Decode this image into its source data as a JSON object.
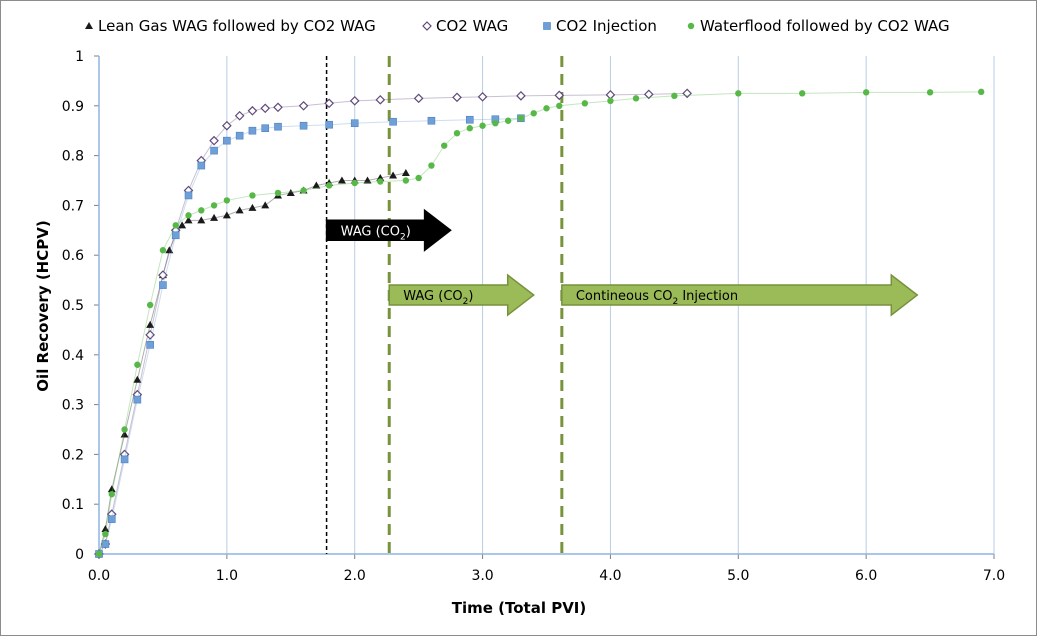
{
  "chart_data": {
    "type": "scatter",
    "xlabel": "Time (Total PVI)",
    "ylabel": "Oil Recovery (HCPV)",
    "xlim": [
      0,
      7
    ],
    "ylim": [
      0,
      1
    ],
    "x_ticks": [
      "0.0",
      "1.0",
      "2.0",
      "3.0",
      "4.0",
      "5.0",
      "6.0",
      "7.0"
    ],
    "y_ticks": [
      "0",
      "0.1",
      "0.2",
      "0.3",
      "0.4",
      "0.5",
      "0.6",
      "0.7",
      "0.8",
      "0.9",
      "1"
    ],
    "grid": "vertical",
    "legend_position": "top",
    "series": [
      {
        "name": "Lean Gas WAG followed by CO2 WAG",
        "marker": "triangle",
        "color": "#1a1a1a",
        "x": [
          0.0,
          0.05,
          0.1,
          0.2,
          0.3,
          0.4,
          0.5,
          0.55,
          0.6,
          0.65,
          0.7,
          0.8,
          0.9,
          1.0,
          1.1,
          1.2,
          1.3,
          1.4,
          1.5,
          1.6,
          1.7,
          1.8,
          1.9,
          2.0,
          2.1,
          2.2,
          2.3,
          2.4
        ],
        "y": [
          0.0,
          0.05,
          0.13,
          0.24,
          0.35,
          0.46,
          0.56,
          0.61,
          0.64,
          0.66,
          0.67,
          0.67,
          0.675,
          0.68,
          0.69,
          0.695,
          0.7,
          0.72,
          0.725,
          0.73,
          0.74,
          0.745,
          0.75,
          0.75,
          0.75,
          0.755,
          0.76,
          0.765
        ]
      },
      {
        "name": "CO2 WAG",
        "marker": "diamond",
        "color": "#604a7b",
        "x": [
          0.0,
          0.05,
          0.1,
          0.2,
          0.3,
          0.4,
          0.5,
          0.6,
          0.7,
          0.8,
          0.9,
          1.0,
          1.1,
          1.2,
          1.3,
          1.4,
          1.6,
          1.8,
          2.0,
          2.2,
          2.5,
          2.8,
          3.0,
          3.3,
          3.6,
          4.0,
          4.3,
          4.6
        ],
        "y": [
          0.0,
          0.02,
          0.08,
          0.2,
          0.32,
          0.44,
          0.56,
          0.65,
          0.73,
          0.79,
          0.83,
          0.86,
          0.88,
          0.89,
          0.895,
          0.897,
          0.9,
          0.905,
          0.91,
          0.912,
          0.915,
          0.917,
          0.918,
          0.92,
          0.921,
          0.922,
          0.923,
          0.925
        ]
      },
      {
        "name": "CO2 Injection",
        "marker": "square",
        "color": "#6f9fd8",
        "x": [
          0.0,
          0.05,
          0.1,
          0.2,
          0.3,
          0.4,
          0.5,
          0.6,
          0.7,
          0.8,
          0.9,
          1.0,
          1.1,
          1.2,
          1.3,
          1.4,
          1.6,
          1.8,
          2.0,
          2.3,
          2.6,
          2.9,
          3.1,
          3.3
        ],
        "y": [
          0.0,
          0.02,
          0.07,
          0.19,
          0.31,
          0.42,
          0.54,
          0.64,
          0.72,
          0.78,
          0.81,
          0.83,
          0.84,
          0.85,
          0.855,
          0.858,
          0.86,
          0.862,
          0.865,
          0.868,
          0.87,
          0.872,
          0.873,
          0.875
        ]
      },
      {
        "name": "Waterflood followed by CO2 WAG",
        "marker": "circle",
        "color": "#57b847",
        "x": [
          0.0,
          0.05,
          0.1,
          0.2,
          0.3,
          0.4,
          0.5,
          0.6,
          0.7,
          0.8,
          0.9,
          1.0,
          1.2,
          1.4,
          1.6,
          1.8,
          2.0,
          2.2,
          2.4,
          2.5,
          2.6,
          2.7,
          2.8,
          2.9,
          3.0,
          3.1,
          3.2,
          3.3,
          3.4,
          3.5,
          3.6,
          3.8,
          4.0,
          4.2,
          4.5,
          5.0,
          5.5,
          6.0,
          6.5,
          6.9
        ],
        "y": [
          0.0,
          0.04,
          0.12,
          0.25,
          0.38,
          0.5,
          0.61,
          0.66,
          0.68,
          0.69,
          0.7,
          0.71,
          0.72,
          0.725,
          0.73,
          0.74,
          0.745,
          0.748,
          0.75,
          0.755,
          0.78,
          0.82,
          0.845,
          0.855,
          0.86,
          0.865,
          0.87,
          0.875,
          0.885,
          0.895,
          0.9,
          0.905,
          0.91,
          0.915,
          0.92,
          0.925,
          0.925,
          0.927,
          0.927,
          0.928
        ]
      }
    ],
    "vertical_lines": [
      {
        "x": 1.78,
        "style": "dotted",
        "color": "#000000"
      },
      {
        "x": 2.27,
        "style": "dashed",
        "color": "#77933c"
      },
      {
        "x": 3.62,
        "style": "dashed",
        "color": "#77933c"
      }
    ],
    "annotations": [
      {
        "text": "WAG (CO",
        "sub": "2",
        "after": ")",
        "fill": "#000000",
        "text_color": "#ffffff",
        "x_start": 1.78,
        "x_end": 2.75,
        "y": 0.65
      },
      {
        "text": "WAG (CO",
        "sub": "2",
        "after": ")",
        "fill": "#9bbb59",
        "text_color": "#000000",
        "x_start": 2.27,
        "x_end": 3.4,
        "y": 0.52
      },
      {
        "text": "Contineous CO",
        "sub": "2",
        "after": " Injection",
        "fill": "#9bbb59",
        "text_color": "#000000",
        "x_start": 3.62,
        "x_end": 6.4,
        "y": 0.52
      }
    ]
  }
}
